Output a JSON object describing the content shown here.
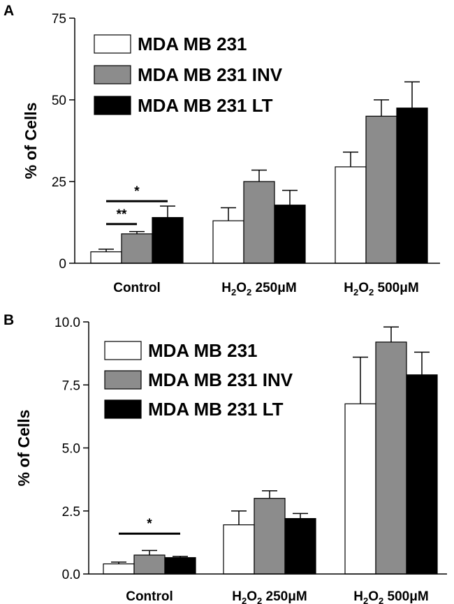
{
  "chart_data": [
    {
      "panel": "A",
      "type": "bar",
      "ylabel": "% of Cells",
      "ylim": [
        0,
        75
      ],
      "yticks": [
        0,
        25,
        50,
        75
      ],
      "ytick_labels": [
        "0",
        "25",
        "50",
        "75"
      ],
      "categories": [
        {
          "base": "Control",
          "h2o2": false,
          "suffix": ""
        },
        {
          "base": "H",
          "h2o2": true,
          "suffix": " 250μM"
        },
        {
          "base": "H",
          "h2o2": true,
          "suffix": " 500μM"
        }
      ],
      "series": [
        {
          "name": "MDA MB 231",
          "color": "#ffffff",
          "values": [
            3.5,
            13,
            29.5
          ],
          "errors": [
            0.8,
            4,
            4.5
          ]
        },
        {
          "name": "MDA MB 231 INV",
          "color": "#8c8c8c",
          "values": [
            9,
            25,
            45
          ],
          "errors": [
            0.7,
            3.5,
            5
          ]
        },
        {
          "name": "MDA MB 231 LT",
          "color": "#000000",
          "values": [
            14,
            17.8,
            47.5
          ],
          "errors": [
            3.5,
            4.5,
            8
          ]
        }
      ],
      "significance": [
        {
          "label": "*",
          "from_series": 0,
          "to_series": 2,
          "category": 0,
          "y": 19
        },
        {
          "label": "**",
          "from_series": 0,
          "to_series": 1,
          "category": 0,
          "y": 12
        }
      ],
      "legend_position": "top-left"
    },
    {
      "panel": "B",
      "type": "bar",
      "ylabel": "% of Cells",
      "ylim": [
        0,
        10
      ],
      "yticks": [
        0,
        2.5,
        5,
        7.5,
        10
      ],
      "ytick_labels": [
        "0.0",
        "2.5",
        "5.0",
        "7.5",
        "10.0"
      ],
      "categories": [
        {
          "base": "Control",
          "h2o2": false,
          "suffix": ""
        },
        {
          "base": "H",
          "h2o2": true,
          "suffix": " 250μM"
        },
        {
          "base": "H",
          "h2o2": true,
          "suffix": " 500μM"
        }
      ],
      "series": [
        {
          "name": "MDA MB 231",
          "color": "#ffffff",
          "values": [
            0.4,
            1.95,
            6.75
          ],
          "errors": [
            0.07,
            0.55,
            1.85
          ]
        },
        {
          "name": "MDA MB 231 INV",
          "color": "#8c8c8c",
          "values": [
            0.75,
            3.0,
            9.2
          ],
          "errors": [
            0.18,
            0.3,
            0.6
          ]
        },
        {
          "name": "MDA MB 231 LT",
          "color": "#000000",
          "values": [
            0.65,
            2.2,
            7.9
          ],
          "errors": [
            0.05,
            0.2,
            0.9
          ]
        }
      ],
      "significance": [
        {
          "label": "*",
          "from_series": 0,
          "to_series": 2,
          "category": 0,
          "y": 1.6
        }
      ],
      "legend_position": "top-left"
    }
  ]
}
